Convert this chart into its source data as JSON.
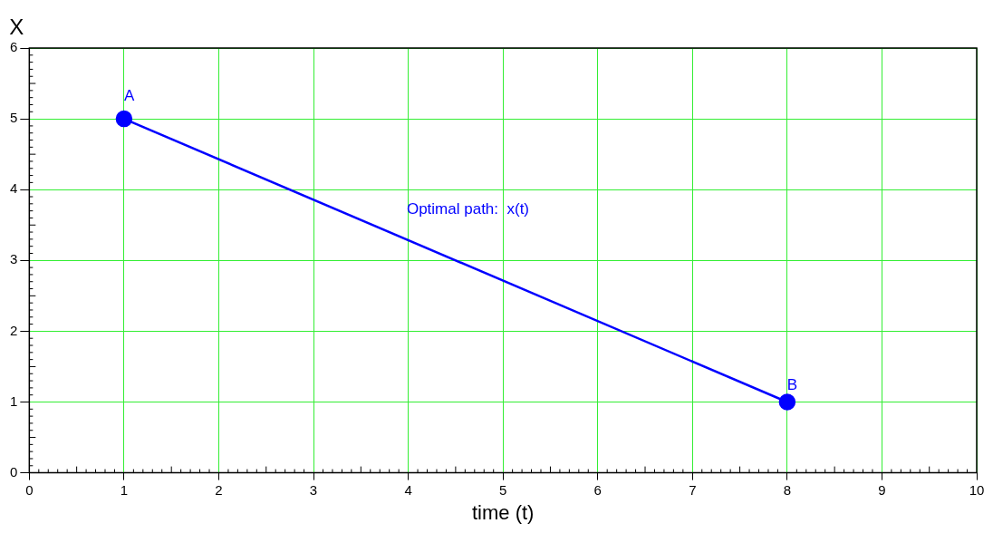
{
  "chart_data": {
    "type": "line",
    "xlabel": "time (t)",
    "ylabel": "X",
    "x": [
      1,
      8
    ],
    "series": [
      {
        "color": "#0000ff",
        "values": [
          5,
          1
        ]
      }
    ],
    "marker": "circle",
    "line_style": "solid",
    "xlim": [
      0,
      10
    ],
    "ylim": [
      0,
      6
    ],
    "xticks": [
      0,
      1,
      2,
      3,
      4,
      5,
      6,
      7,
      8,
      9,
      10
    ],
    "yticks": [
      0,
      1,
      2,
      3,
      4,
      5,
      6
    ],
    "grid": true,
    "legend": false,
    "annotations": [
      {
        "text": "A",
        "x": 1,
        "y": 5
      },
      {
        "text": "B",
        "x": 8,
        "y": 1
      },
      "Optimal path:  x(t)"
    ]
  }
}
